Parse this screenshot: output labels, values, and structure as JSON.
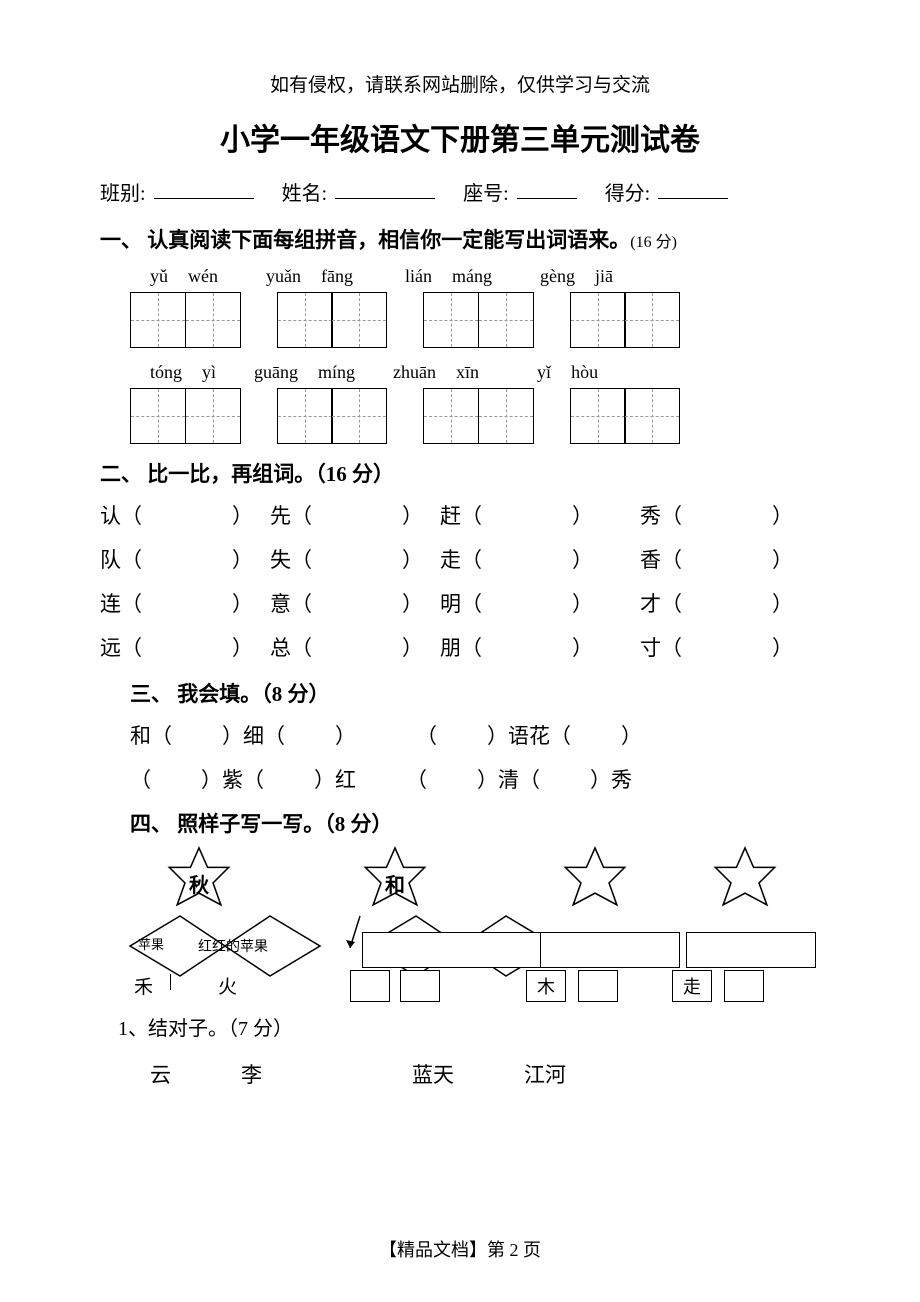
{
  "colors": {
    "text": "#000000",
    "bg": "#ffffff",
    "grid_dash": "#999999"
  },
  "disclaimer": "如有侵权，请联系网站删除，仅供学习与交流",
  "title": "小学一年级语文下册第三单元测试卷",
  "info": {
    "class_label": "班别:",
    "name_label": "姓名:",
    "seat_label": "座号:",
    "score_label": "得分:"
  },
  "q1": {
    "header": "一、 认真阅读下面每组拼音，相信你一定能写出词语来。",
    "points": "(16 分)",
    "row1": [
      [
        "yǔ",
        "wén"
      ],
      [
        "yuǎn",
        "fāng"
      ],
      [
        "lián",
        "máng"
      ],
      [
        "gèng",
        "jiā"
      ]
    ],
    "row2": [
      [
        "tóng",
        "yì"
      ],
      [
        "guāng",
        "míng"
      ],
      [
        "zhuān",
        "xīn"
      ],
      [
        "yǐ",
        "hòu"
      ]
    ]
  },
  "q2": {
    "header": "二、 比一比，再组词。（16 分）",
    "rows": [
      [
        "认",
        "先",
        "赶",
        "秀"
      ],
      [
        "队",
        "失",
        "走",
        "香"
      ],
      [
        "连",
        "意",
        "明",
        "才"
      ],
      [
        "远",
        "总",
        "朋",
        "寸"
      ]
    ],
    "col_offsets": [
      0,
      170,
      340,
      540
    ]
  },
  "q3": {
    "header": "三、 我会填。（8 分）",
    "lines": [
      [
        {
          "parts": [
            "和（",
            "）细（",
            "）"
          ]
        },
        {
          "parts": [
            "（",
            "）语花（",
            "）"
          ]
        }
      ],
      [
        {
          "parts": [
            "（",
            "）紫（",
            "）红"
          ]
        },
        {
          "parts": [
            "（",
            "）清（",
            "）秀"
          ]
        }
      ]
    ]
  },
  "q4": {
    "header": "四、 照样子写一写。（8 分）",
    "star1": "秋",
    "star2": "和",
    "small_label1": "苹果",
    "diamond_text": "红红的苹果",
    "bottom_chars": [
      "禾",
      "火"
    ],
    "box_char1": "木",
    "box_char2": "走",
    "sub": "1、结对子。（7 分）",
    "pairs": [
      "云",
      "李",
      "蓝天",
      "江河"
    ]
  },
  "footer": "【精品文档】第 2 页"
}
